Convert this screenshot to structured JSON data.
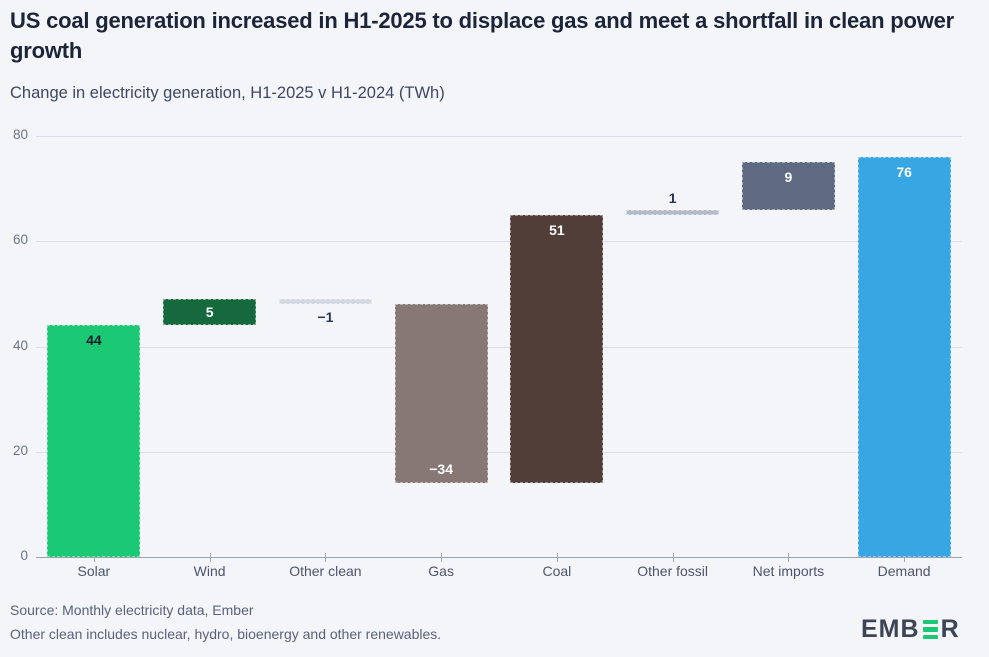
{
  "header": {
    "title": "US coal generation increased in H1-2025 to displace gas and meet a shortfall in clean power growth",
    "subtitle": "Change in electricity generation, H1-2025 v H1-2024 (TWh)"
  },
  "chart_data": {
    "type": "bar",
    "subtype": "waterfall",
    "title": "US coal generation increased in H1-2025 to displace gas and meet a shortfall in clean power growth",
    "subtitle": "Change in electricity generation, H1-2025 v H1-2024 (TWh)",
    "unit": "TWh",
    "ylim": [
      0,
      80
    ],
    "y_ticks": [
      0,
      20,
      40,
      60,
      80
    ],
    "grid": true,
    "legend": "none",
    "categories": [
      "Solar",
      "Wind",
      "Other clean",
      "Gas",
      "Coal",
      "Other fossil",
      "Net imports",
      "Demand"
    ],
    "values": [
      44,
      5,
      -1,
      -34,
      51,
      1,
      9,
      76
    ],
    "bars": [
      {
        "category": "Solar",
        "value": 44,
        "label": "44",
        "kind": "delta",
        "color": "#1bc974",
        "label_color": "#101b2c",
        "label_pos": "inside-top"
      },
      {
        "category": "Wind",
        "value": 5,
        "label": "5",
        "kind": "delta",
        "color": "#15693d",
        "label_color": "#ffffff",
        "label_pos": "center"
      },
      {
        "category": "Other clean",
        "value": -1,
        "label": "−1",
        "kind": "delta",
        "color": "#d2d8e2",
        "label_color": "#2b3550",
        "label_pos": "below"
      },
      {
        "category": "Gas",
        "value": -34,
        "label": "−34",
        "kind": "delta",
        "color": "#877876",
        "label_color": "#ffffff",
        "label_pos": "inside-bottom"
      },
      {
        "category": "Coal",
        "value": 51,
        "label": "51",
        "kind": "delta",
        "color": "#523e39",
        "label_color": "#ffffff",
        "label_pos": "inside-top"
      },
      {
        "category": "Other fossil",
        "value": 1,
        "label": "1",
        "kind": "delta",
        "color": "#b5bcc9",
        "label_color": "#2b3550",
        "label_pos": "above"
      },
      {
        "category": "Net imports",
        "value": 9,
        "label": "9",
        "kind": "delta",
        "color": "#5e6a81",
        "label_color": "#ffffff",
        "label_pos": "inside-top"
      },
      {
        "category": "Demand",
        "value": 76,
        "label": "76",
        "kind": "total",
        "color": "#37a6e2",
        "label_color": "#ffffff",
        "label_pos": "inside-top"
      }
    ]
  },
  "footer": {
    "source": "Source: Monthly electricity data, Ember",
    "note": "Other clean includes nuclear, hydro, bioenergy and other renewables.",
    "logo": {
      "text": "EMBER",
      "pre": "EMB",
      "post": "R",
      "accent": "#1bc974",
      "text_color": "#3d4456"
    }
  },
  "colors": {
    "background": "#f4f5f9",
    "title_text": "#1b2438",
    "subtitle_text": "#3e4763",
    "axis_label": "#6b7487",
    "category_label": "#4c556b",
    "gridline": "#dcdfe8",
    "zero_axis": "#9aa1b0",
    "footer_text": "#59627a"
  }
}
